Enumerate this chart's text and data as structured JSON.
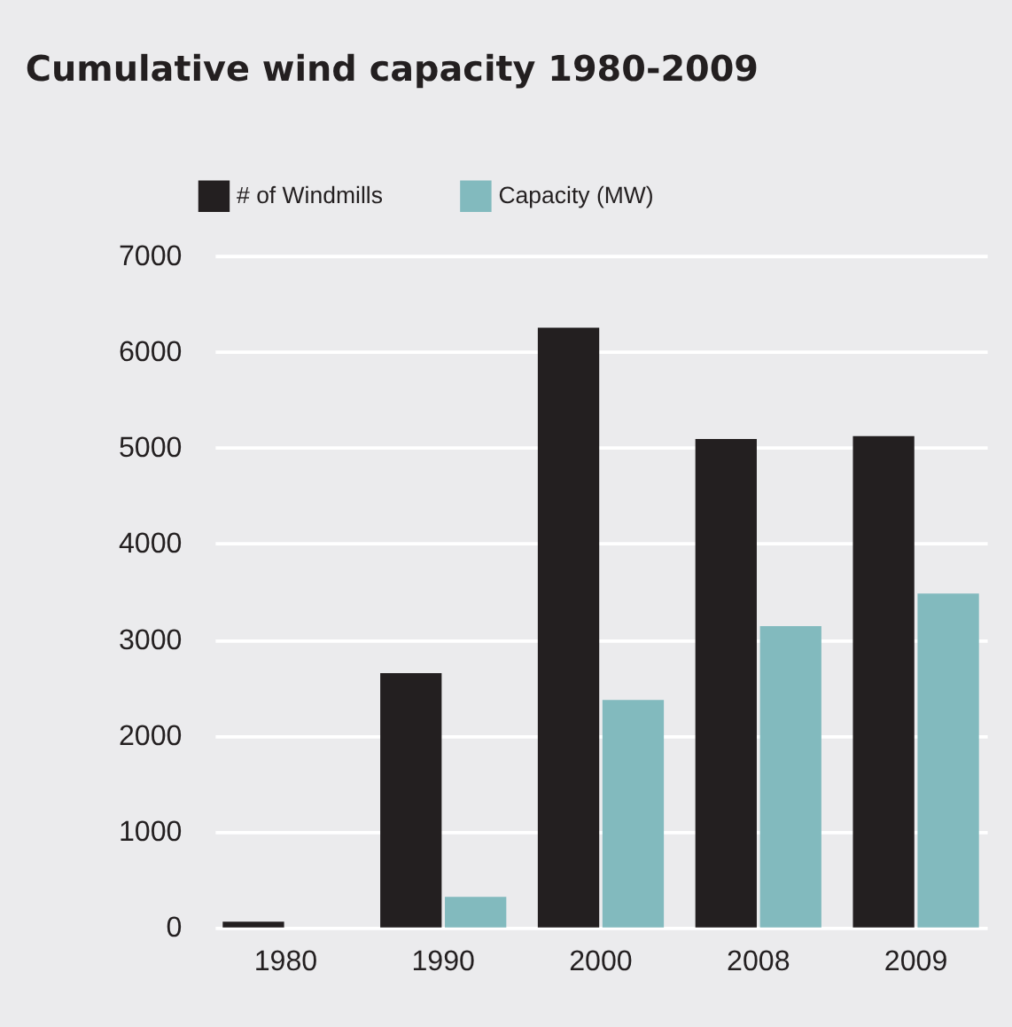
{
  "chart_data": {
    "type": "bar",
    "title": "Cumulative wind capacity 1980-2009",
    "categories": [
      "1980",
      "1990",
      "2000",
      "2008",
      "2009"
    ],
    "series": [
      {
        "name": "# of Windmills",
        "color": "#231f20",
        "values": [
          60,
          2650,
          6250,
          5090,
          5120
        ]
      },
      {
        "name": "Capacity (MW)",
        "color": "#82babe",
        "values": [
          0,
          320,
          2370,
          3140,
          3480
        ]
      }
    ],
    "ylim": [
      0,
      7000
    ],
    "yticks": [
      0,
      1000,
      2000,
      3000,
      4000,
      5000,
      6000,
      7000
    ],
    "grid": "y",
    "legend": "top left"
  }
}
